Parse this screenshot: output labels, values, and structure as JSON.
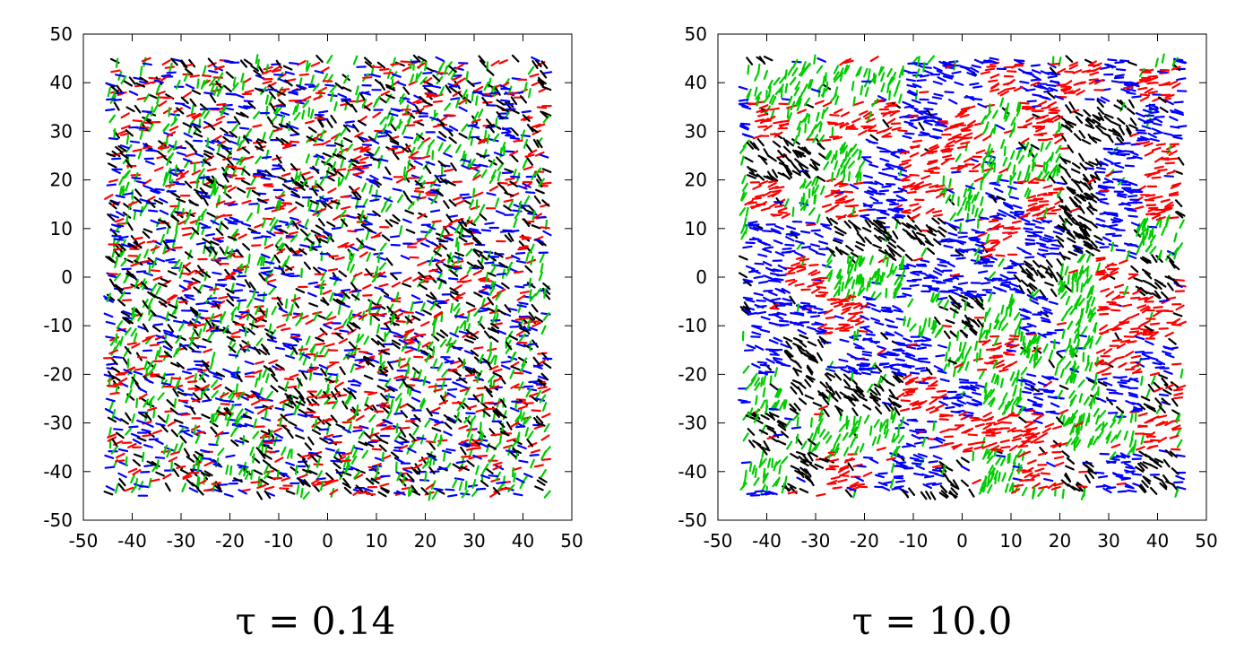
{
  "chart_data": [
    {
      "type": "scatter",
      "title": "",
      "xlabel": "",
      "ylabel": "",
      "xlim": [
        -50,
        50
      ],
      "ylim": [
        -50,
        50
      ],
      "xticks": [
        -50,
        -40,
        -30,
        -20,
        -10,
        0,
        10,
        20,
        30,
        40,
        50
      ],
      "yticks": [
        -50,
        -40,
        -30,
        -20,
        -10,
        0,
        10,
        20,
        30,
        40,
        50
      ],
      "xtick_labels": [
        "-50",
        "-40",
        "-30",
        "-20",
        "-10",
        "0",
        "10",
        "20",
        "30",
        "40",
        "50"
      ],
      "ytick_labels": [
        "-50",
        "-40",
        "-30",
        "-20",
        "-10",
        "0",
        "10",
        "20",
        "30",
        "40",
        "50"
      ],
      "grid": false,
      "point_extent": [
        -45,
        45
      ],
      "caption": "τ = 0.14",
      "domain_scale": 2.5,
      "colors": [
        "#000000",
        "#ff0000",
        "#00cc00",
        "#0000ff"
      ]
    },
    {
      "type": "scatter",
      "title": "",
      "xlabel": "",
      "ylabel": "",
      "xlim": [
        -50,
        50
      ],
      "ylim": [
        -50,
        50
      ],
      "xticks": [
        -50,
        -40,
        -30,
        -20,
        -10,
        0,
        10,
        20,
        30,
        40,
        50
      ],
      "yticks": [
        -50,
        -40,
        -30,
        -20,
        -10,
        0,
        10,
        20,
        30,
        40,
        50
      ],
      "xtick_labels": [
        "-50",
        "-40",
        "-30",
        "-20",
        "-10",
        "0",
        "10",
        "20",
        "30",
        "40",
        "50"
      ],
      "ytick_labels": [
        "-50",
        "-40",
        "-30",
        "-20",
        "-10",
        "0",
        "10",
        "20",
        "30",
        "40",
        "50"
      ],
      "grid": false,
      "point_extent": [
        -45,
        45
      ],
      "caption": "τ = 10.0",
      "domain_scale": 8,
      "colors": [
        "#000000",
        "#ff0000",
        "#00cc00",
        "#0000ff"
      ]
    }
  ]
}
